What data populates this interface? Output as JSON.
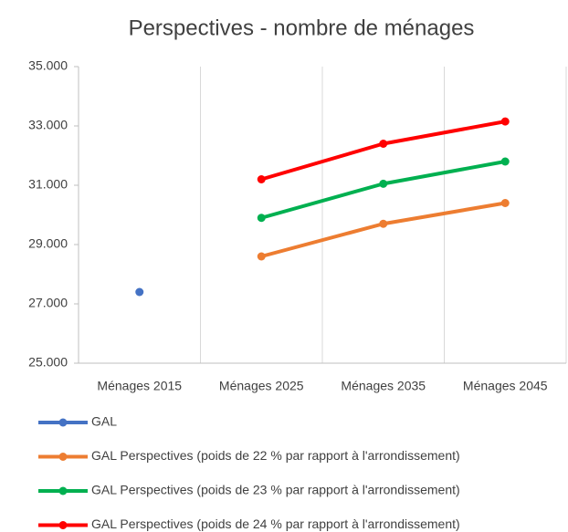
{
  "chart_data": {
    "type": "line",
    "title": "Perspectives - nombre de ménages",
    "categories": [
      "Ménages 2015",
      "Ménages 2025",
      "Ménages 2035",
      "Ménages 2045"
    ],
    "series": [
      {
        "name": "GAL",
        "color": "#4472c4",
        "values": [
          27400,
          null,
          null,
          null
        ]
      },
      {
        "name": "GAL Perspectives (poids de 22 % par rapport à l'arrondissement)",
        "color": "#ed7d31",
        "values": [
          null,
          28600,
          29700,
          30400
        ]
      },
      {
        "name": "GAL Perspectives (poids de 23 % par rapport à l'arrondissement)",
        "color": "#00b050",
        "values": [
          null,
          29900,
          31050,
          31800
        ]
      },
      {
        "name": "GAL Perspectives (poids de 24 % par rapport à l'arrondissement)",
        "color": "#ff0000",
        "values": [
          null,
          31200,
          32400,
          33150
        ]
      }
    ],
    "ylim": [
      25000,
      35000
    ],
    "yticks": [
      {
        "value": 25000,
        "label": "25.000"
      },
      {
        "value": 27000,
        "label": "27.000"
      },
      {
        "value": 29000,
        "label": "29.000"
      },
      {
        "value": 31000,
        "label": "31.000"
      },
      {
        "value": 33000,
        "label": "33.000"
      },
      {
        "value": 35000,
        "label": "35.000"
      }
    ],
    "legend": "bottom"
  }
}
